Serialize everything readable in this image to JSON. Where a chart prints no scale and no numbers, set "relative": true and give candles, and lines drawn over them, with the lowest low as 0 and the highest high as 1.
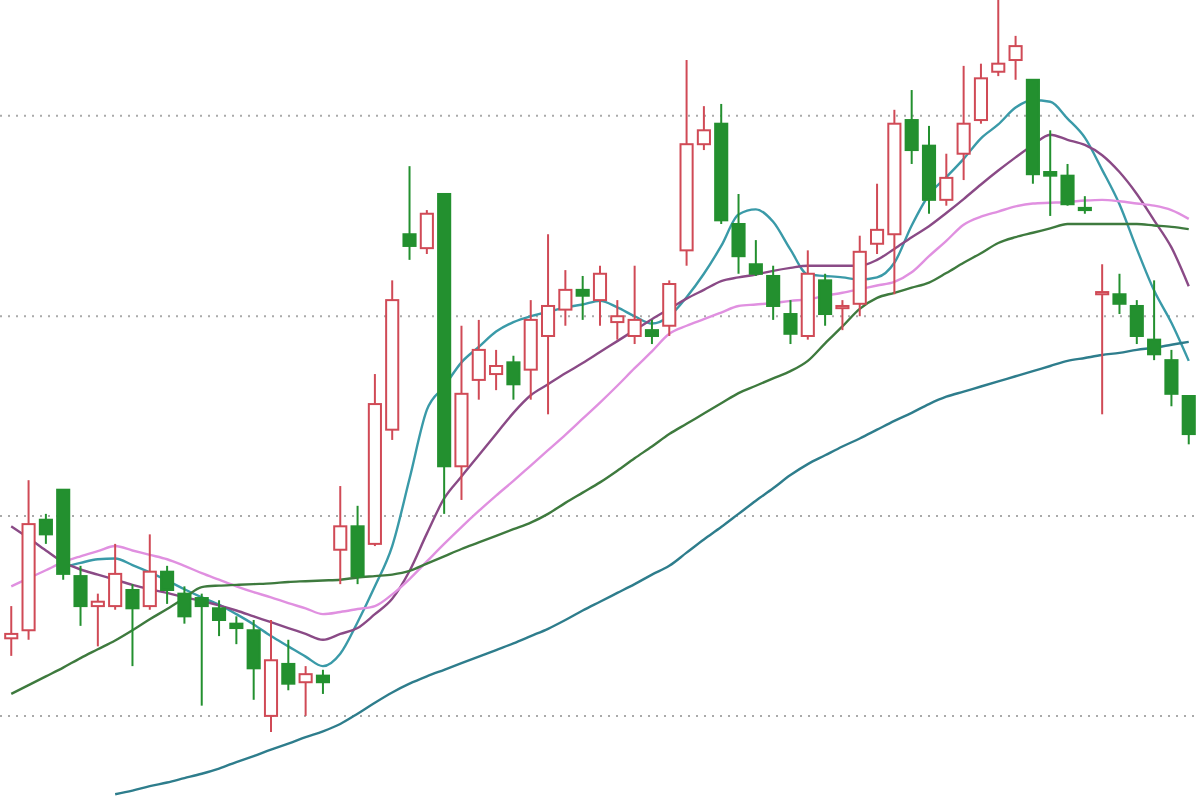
{
  "chart_data": {
    "type": "candlestick",
    "relative": true,
    "ref_lines": [
      {
        "axis": "y",
        "value": 0.022,
        "color": "#aaaaaa",
        "line_style": "dotted"
      },
      {
        "axis": "y",
        "value": 0.295,
        "color": "#aaaaaa",
        "line_style": "dotted"
      },
      {
        "axis": "y",
        "value": 0.568,
        "color": "#aaaaaa",
        "line_style": "dotted"
      },
      {
        "axis": "y",
        "value": 0.842,
        "color": "#aaaaaa",
        "line_style": "dotted"
      }
    ],
    "categories": [
      null,
      null,
      null,
      null,
      null,
      null,
      null,
      null,
      null,
      null,
      null,
      null,
      null,
      null,
      null,
      null,
      null,
      null,
      null,
      null,
      null,
      null,
      null,
      null,
      null,
      null,
      null,
      null,
      null,
      null,
      null,
      null,
      null,
      null,
      null,
      null,
      null,
      null,
      null,
      null,
      null,
      null,
      null,
      null,
      null,
      null,
      null,
      null,
      null,
      null,
      null,
      null,
      null,
      null,
      null,
      null,
      null,
      null,
      null,
      null,
      null,
      null,
      null,
      null,
      null,
      null,
      null,
      null,
      null
    ],
    "ohlc": [
      [
        0.128,
        0.172,
        0.104,
        0.134
      ],
      [
        0.139,
        0.344,
        0.126,
        0.284
      ],
      [
        0.29,
        0.298,
        0.257,
        0.27
      ],
      [
        0.331,
        0.331,
        0.208,
        0.216
      ],
      [
        0.213,
        0.227,
        0.145,
        0.172
      ],
      [
        0.172,
        0.189,
        0.117,
        0.178
      ],
      [
        0.172,
        0.257,
        0.167,
        0.216
      ],
      [
        0.194,
        0.202,
        0.09,
        0.169
      ],
      [
        0.172,
        0.27,
        0.167,
        0.219
      ],
      [
        0.219,
        0.227,
        0.175,
        0.194
      ],
      [
        0.189,
        0.199,
        0.148,
        0.158
      ],
      [
        0.183,
        0.189,
        0.036,
        0.172
      ],
      [
        0.169,
        0.18,
        0.131,
        0.153
      ],
      [
        0.148,
        0.158,
        0.12,
        0.142
      ],
      [
        0.139,
        0.153,
        0.044,
        0.087
      ],
      [
        0.022,
        0.153,
        0,
        0.098
      ],
      [
        0.093,
        0.126,
        0.057,
        0.066
      ],
      [
        0.068,
        0.09,
        0.022,
        0.079
      ],
      [
        0.077,
        0.085,
        0.052,
        0.068
      ],
      [
        0.249,
        0.336,
        0.202,
        0.281
      ],
      [
        0.281,
        0.309,
        0.202,
        0.213
      ],
      [
        0.257,
        0.489,
        0.254,
        0.448
      ],
      [
        0.413,
        0.617,
        0.399,
        0.59
      ],
      [
        0.68,
        0.773,
        0.645,
        0.664
      ],
      [
        0.661,
        0.713,
        0.653,
        0.708
      ],
      [
        0.735,
        0.735,
        0.298,
        0.363
      ],
      [
        0.363,
        0.555,
        0.317,
        0.462
      ],
      [
        0.481,
        0.563,
        0.454,
        0.522
      ],
      [
        0.489,
        0.522,
        0.467,
        0.5
      ],
      [
        0.505,
        0.514,
        0.454,
        0.475
      ],
      [
        0.495,
        0.59,
        0.454,
        0.563
      ],
      [
        0.541,
        0.68,
        0.434,
        0.582
      ],
      [
        0.577,
        0.631,
        0.555,
        0.604
      ],
      [
        0.604,
        0.623,
        0.563,
        0.596
      ],
      [
        0.59,
        0.637,
        0.555,
        0.626
      ],
      [
        0.56,
        0.59,
        0.536,
        0.568
      ],
      [
        0.541,
        0.637,
        0.53,
        0.563
      ],
      [
        0.549,
        0.563,
        0.53,
        0.541
      ],
      [
        0.555,
        0.617,
        0.541,
        0.612
      ],
      [
        0.658,
        0.918,
        0.637,
        0.803
      ],
      [
        0.803,
        0.855,
        0.795,
        0.822
      ],
      [
        0.831,
        0.858,
        0.694,
        0.699
      ],
      [
        0.694,
        0.735,
        0.626,
        0.65
      ],
      [
        0.639,
        0.672,
        0.623,
        0.626
      ],
      [
        0.623,
        0.637,
        0.563,
        0.582
      ],
      [
        0.571,
        0.59,
        0.53,
        0.544
      ],
      [
        0.541,
        0.658,
        0.536,
        0.626
      ],
      [
        0.617,
        0.626,
        0.555,
        0.571
      ],
      [
        0.579,
        0.59,
        0.549,
        0.582
      ],
      [
        0.585,
        0.678,
        0.568,
        0.656
      ],
      [
        0.667,
        0.749,
        0.653,
        0.686
      ],
      [
        0.68,
        0.85,
        0.598,
        0.831
      ],
      [
        0.836,
        0.877,
        0.776,
        0.795
      ],
      [
        0.801,
        0.828,
        0.708,
        0.727
      ],
      [
        0.727,
        0.79,
        0.719,
        0.757
      ],
      [
        0.79,
        0.91,
        0.754,
        0.831
      ],
      [
        0.836,
        0.913,
        0.831,
        0.893
      ],
      [
        0.902,
        1,
        0.896,
        0.913
      ],
      [
        0.918,
        0.951,
        0.891,
        0.937
      ],
      [
        0.891,
        0.891,
        0.749,
        0.762
      ],
      [
        0.765,
        0.822,
        0.705,
        0.76
      ],
      [
        0.76,
        0.776,
        0.719,
        0.721
      ],
      [
        0.716,
        0.732,
        0.708,
        0.713
      ],
      [
        0.598,
        0.639,
        0.434,
        0.601
      ],
      [
        0.598,
        0.626,
        0.571,
        0.585
      ],
      [
        0.582,
        0.59,
        0.53,
        0.541
      ],
      [
        0.536,
        0.617,
        0.508,
        0.516
      ],
      [
        0.508,
        0.522,
        0.445,
        0.462
      ],
      [
        0.459,
        0.459,
        0.393,
        0.407
      ]
    ],
    "colors": [
      "#d04a56",
      "#d04a56",
      "#23902f",
      "#23902f",
      "#23902f",
      "#d04a56",
      "#d04a56",
      "#23902f",
      "#d04a56",
      "#23902f",
      "#23902f",
      "#23902f",
      "#23902f",
      "#23902f",
      "#23902f",
      "#d04a56",
      "#23902f",
      "#d04a56",
      "#23902f",
      "#d04a56",
      "#23902f",
      "#d04a56",
      "#d04a56",
      "#23902f",
      "#d04a56",
      "#23902f",
      "#d04a56",
      "#d04a56",
      "#d04a56",
      "#23902f",
      "#d04a56",
      "#d04a56",
      "#d04a56",
      "#23902f",
      "#d04a56",
      "#d04a56",
      "#d04a56",
      "#23902f",
      "#d04a56",
      "#d04a56",
      "#d04a56",
      "#23902f",
      "#23902f",
      "#23902f",
      "#23902f",
      "#23902f",
      "#d04a56",
      "#23902f",
      "#d04a56",
      "#d04a56",
      "#d04a56",
      "#d04a56",
      "#23902f",
      "#23902f",
      "#d04a56",
      "#d04a56",
      "#d04a56",
      "#d04a56",
      "#d04a56",
      "#23902f",
      "#23902f",
      "#23902f",
      "#23902f",
      "#d04a56",
      "#23902f",
      "#23902f",
      "#23902f",
      "#23902f",
      "#23902f"
    ],
    "series": [
      {
        "type": "line",
        "color": "#3a9aa8",
        "values": [
          null,
          null,
          null,
          0.225,
          0.231,
          0.236,
          0.237,
          0.228,
          0.218,
          0.207,
          0.195,
          0.184,
          0.174,
          0.161,
          0.147,
          0.131,
          0.117,
          0.103,
          0.09,
          0.107,
          0.15,
          0.199,
          0.254,
          0.346,
          0.44,
          0.472,
          0.505,
          0.526,
          0.547,
          0.56,
          0.568,
          0.574,
          0.58,
          0.584,
          0.589,
          0.58,
          0.568,
          0.558,
          0.568,
          0.594,
          0.626,
          0.664,
          0.707,
          0.714,
          0.697,
          0.659,
          0.625,
          0.623,
          0.621,
          0.618,
          0.621,
          0.641,
          0.692,
          0.734,
          0.758,
          0.783,
          0.811,
          0.83,
          0.853,
          0.863,
          0.861,
          0.838,
          0.812,
          0.768,
          0.721,
          0.66,
          0.603,
          0.559,
          0.507
        ]
      },
      {
        "type": "line",
        "color": "#8a4a86",
        "values": [
          0.281,
          0.265,
          0.248,
          0.232,
          0.222,
          0.215,
          0.208,
          0.201,
          0.195,
          0.19,
          0.184,
          0.179,
          0.173,
          0.166,
          0.158,
          0.15,
          0.142,
          0.134,
          0.126,
          0.134,
          0.142,
          0.161,
          0.182,
          0.22,
          0.271,
          0.319,
          0.349,
          0.378,
          0.407,
          0.436,
          0.46,
          0.475,
          0.49,
          0.504,
          0.519,
          0.534,
          0.549,
          0.564,
          0.578,
          0.592,
          0.604,
          0.616,
          0.621,
          0.625,
          0.63,
          0.634,
          0.637,
          0.637,
          0.637,
          0.637,
          0.645,
          0.66,
          0.676,
          0.691,
          0.709,
          0.728,
          0.748,
          0.767,
          0.785,
          0.802,
          0.816,
          0.809,
          0.802,
          0.788,
          0.765,
          0.735,
          0.699,
          0.662,
          0.609
        ]
      },
      {
        "type": "line",
        "color": "#e090e0",
        "values": [
          0.199,
          0.21,
          0.221,
          0.232,
          0.24,
          0.247,
          0.254,
          0.248,
          0.242,
          0.236,
          0.227,
          0.217,
          0.208,
          0.199,
          0.191,
          0.184,
          0.176,
          0.169,
          0.161,
          0.164,
          0.168,
          0.172,
          0.188,
          0.209,
          0.233,
          0.257,
          0.28,
          0.302,
          0.323,
          0.343,
          0.364,
          0.385,
          0.406,
          0.428,
          0.45,
          0.473,
          0.497,
          0.52,
          0.544,
          0.555,
          0.564,
          0.573,
          0.582,
          0.584,
          0.586,
          0.589,
          0.591,
          0.596,
          0.6,
          0.605,
          0.61,
          0.615,
          0.628,
          0.65,
          0.671,
          0.693,
          0.704,
          0.711,
          0.718,
          0.722,
          0.723,
          0.724,
          0.726,
          0.727,
          0.725,
          0.722,
          0.719,
          0.713,
          0.701
        ]
      },
      {
        "type": "line",
        "color": "#3e7a3e",
        "values": [
          0.052,
          0.064,
          0.076,
          0.088,
          0.101,
          0.113,
          0.125,
          0.139,
          0.154,
          0.168,
          0.183,
          0.198,
          0.2,
          0.201,
          0.202,
          0.203,
          0.205,
          0.206,
          0.207,
          0.208,
          0.211,
          0.213,
          0.215,
          0.22,
          0.23,
          0.24,
          0.25,
          0.259,
          0.268,
          0.277,
          0.286,
          0.298,
          0.313,
          0.327,
          0.341,
          0.357,
          0.374,
          0.39,
          0.407,
          0.421,
          0.435,
          0.449,
          0.463,
          0.473,
          0.483,
          0.493,
          0.507,
          0.531,
          0.554,
          0.578,
          0.593,
          0.6,
          0.607,
          0.614,
          0.627,
          0.641,
          0.654,
          0.668,
          0.676,
          0.682,
          0.688,
          0.694,
          0.694,
          0.694,
          0.694,
          0.694,
          0.692,
          0.69,
          0.687
        ]
      },
      {
        "type": "line",
        "color": "#2e7d8c",
        "values": [
          null,
          null,
          null,
          null,
          null,
          null,
          -0.085,
          -0.08,
          -0.074,
          -0.069,
          -0.063,
          -0.057,
          -0.05,
          -0.041,
          -0.033,
          -0.024,
          -0.016,
          -0.007,
          0.001,
          0.011,
          0.025,
          0.04,
          0.054,
          0.066,
          0.076,
          0.085,
          0.094,
          0.103,
          0.112,
          0.121,
          0.131,
          0.141,
          0.153,
          0.166,
          0.178,
          0.19,
          0.202,
          0.215,
          0.227,
          0.245,
          0.263,
          0.28,
          0.298,
          0.316,
          0.333,
          0.351,
          0.366,
          0.378,
          0.39,
          0.401,
          0.413,
          0.425,
          0.436,
          0.448,
          0.458,
          0.465,
          0.472,
          0.479,
          0.486,
          0.493,
          0.5,
          0.507,
          0.511,
          0.515,
          0.518,
          0.522,
          0.525,
          0.529,
          0.533
        ]
      }
    ]
  }
}
